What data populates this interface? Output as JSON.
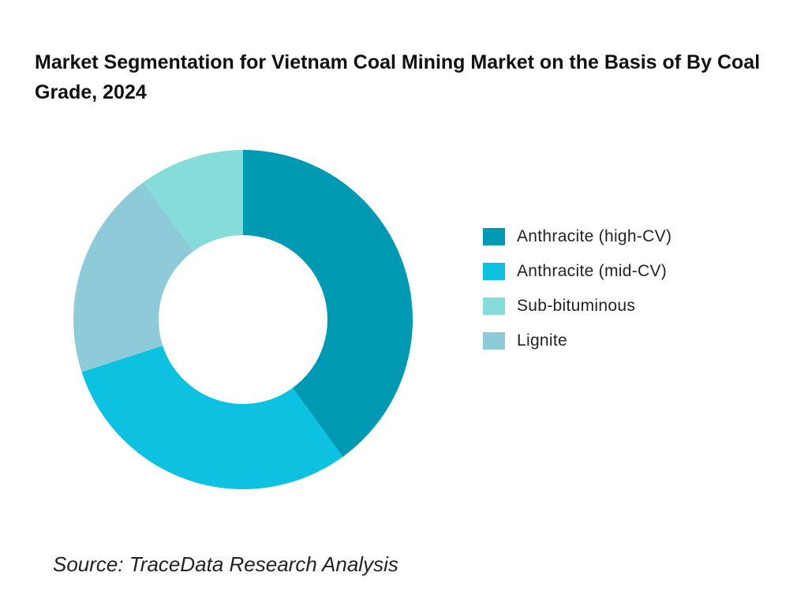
{
  "chart_data": {
    "type": "pie",
    "variant": "donut",
    "title": "Market Segmentation for Vietnam Coal Mining Market on the Basis of  By Coal Grade, 2024",
    "categories": [
      "Anthracite (high-CV)",
      "Anthracite (mid-CV)",
      "Sub-bituminous",
      "Lignite"
    ],
    "values": [
      40,
      30,
      10,
      20
    ],
    "unit": "%",
    "colors": [
      "#0099b3",
      "#0dc2e0",
      "#86dcd9",
      "#8ecbd8"
    ],
    "draw_order": [
      "Anthracite (high-CV)",
      "Anthracite (mid-CV)",
      "Lignite",
      "Sub-bituminous"
    ],
    "start": "12 o'clock, clockwise",
    "legend_position": "right"
  },
  "source": "Source: TraceData Research Analysis"
}
